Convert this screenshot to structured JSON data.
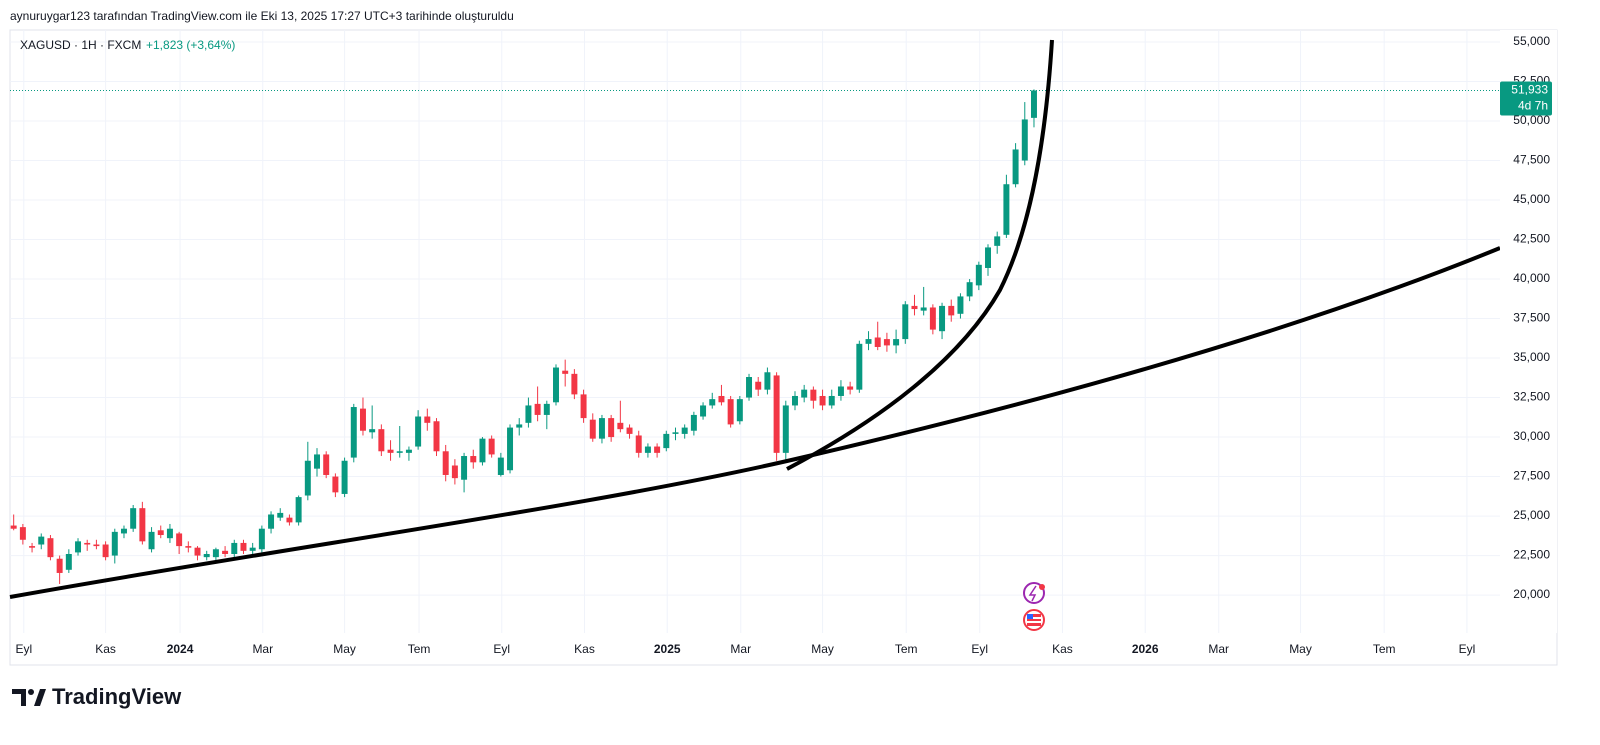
{
  "attribution": "aynuruygar123 tarafından TradingView.com ile Eki 13, 2025 17:27 UTC+3 tarihinde oluşturuldu",
  "brand": "TradingView",
  "chart_data": {
    "type": "candlestick",
    "title": "XAGUSD · 1H · FXCM",
    "change": "+1,823 (+3,64%)",
    "up_color": "#089981",
    "down_color": "#f23645",
    "open": [
      24.4,
      24.3,
      23.1,
      23.2,
      23.6,
      22.3,
      21.6,
      22.7,
      23.3,
      23.2,
      23.2,
      22.5,
      23.9,
      24.2,
      25.5,
      22.9,
      24.1,
      23.6,
      23.9,
      23.1,
      23.0,
      22.4,
      22.4,
      22.8,
      22.6,
      23.3,
      22.8,
      22.9,
      24.2,
      24.9,
      24.9,
      24.6,
      26.3,
      28.0,
      28.9,
      27.5,
      26.4,
      28.7,
      31.8,
      30.3,
      30.5,
      29.2,
      29.0,
      29.0,
      29.4,
      31.3,
      31.0,
      29.1,
      28.2,
      27.3,
      28.8,
      28.4,
      29.9,
      27.6,
      27.9,
      30.6,
      30.9,
      32.1,
      31.4,
      32.2,
      34.2,
      34.0,
      32.7,
      31.1,
      29.9,
      31.2,
      30.9,
      30.6,
      30.1,
      29.0,
      29.4,
      29.3,
      30.2,
      30.2,
      30.4,
      31.3,
      32.0,
      32.6,
      32.4,
      31.0,
      32.5,
      33.5,
      33.0,
      33.9,
      29.0,
      32.0,
      32.5,
      33.0,
      32.6,
      32.0,
      32.6,
      33.2,
      33.0,
      35.9,
      36.3,
      36.2,
      35.8,
      36.2,
      38.3,
      38.0,
      38.2,
      36.7,
      38.3,
      37.8,
      38.9,
      39.6,
      40.7,
      42.1,
      42.8,
      46.0,
      47.5,
      50.2
    ],
    "high": [
      25.1,
      24.5,
      23.3,
      23.9,
      23.8,
      22.5,
      22.9,
      23.6,
      23.5,
      23.5,
      23.4,
      24.2,
      24.4,
      25.7,
      25.9,
      24.3,
      24.4,
      24.5,
      24.0,
      23.4,
      23.1,
      22.8,
      23.0,
      23.1,
      23.5,
      23.5,
      23.3,
      24.4,
      25.3,
      25.5,
      25.1,
      26.3,
      29.7,
      29.3,
      29.1,
      27.7,
      28.7,
      32.1,
      32.5,
      32.0,
      30.8,
      29.8,
      30.7,
      29.4,
      31.7,
      31.8,
      31.2,
      29.5,
      28.6,
      29.0,
      29.2,
      30.0,
      30.1,
      29.0,
      30.8,
      31.2,
      32.5,
      33.2,
      32.3,
      34.6,
      34.9,
      34.3,
      33.0,
      31.5,
      31.4,
      31.4,
      32.3,
      30.8,
      30.4,
      29.6,
      29.6,
      30.4,
      30.6,
      30.8,
      31.6,
      32.2,
      32.8,
      33.3,
      32.6,
      32.6,
      34.0,
      33.8,
      34.4,
      34.1,
      32.3,
      32.9,
      33.3,
      33.2,
      33.0,
      33.0,
      33.6,
      33.5,
      36.1,
      36.7,
      37.3,
      36.6,
      36.8,
      38.6,
      39.0,
      39.5,
      38.4,
      38.5,
      38.7,
      39.1,
      40.0,
      41.1,
      42.2,
      43.0,
      46.6,
      48.6,
      51.2,
      52.0
    ],
    "low": [
      24.1,
      23.2,
      22.7,
      22.9,
      22.2,
      20.7,
      21.4,
      22.5,
      22.8,
      22.9,
      22.2,
      22.0,
      23.6,
      24.0,
      23.2,
      22.7,
      23.6,
      23.3,
      22.6,
      22.7,
      22.2,
      22.2,
      22.1,
      22.4,
      22.4,
      22.6,
      22.5,
      22.7,
      23.9,
      24.7,
      24.4,
      24.4,
      26.0,
      27.5,
      27.4,
      26.2,
      26.2,
      28.4,
      30.1,
      29.9,
      28.8,
      28.5,
      28.7,
      28.5,
      29.2,
      30.4,
      28.8,
      27.2,
      27.0,
      26.5,
      28.0,
      28.2,
      28.7,
      27.5,
      27.7,
      30.1,
      30.6,
      31.0,
      30.5,
      32.0,
      33.2,
      32.4,
      30.9,
      29.7,
      29.6,
      29.7,
      30.3,
      29.9,
      28.7,
      28.7,
      28.7,
      29.1,
      29.8,
      29.9,
      30.1,
      31.1,
      31.8,
      32.0,
      30.6,
      30.8,
      32.3,
      32.6,
      32.7,
      28.5,
      28.4,
      31.7,
      32.2,
      31.8,
      31.7,
      31.8,
      32.3,
      32.7,
      32.8,
      35.5,
      35.5,
      35.4,
      35.3,
      35.9,
      37.7,
      37.7,
      36.5,
      36.2,
      37.3,
      37.5,
      38.6,
      39.3,
      40.2,
      41.6,
      42.6,
      45.8,
      47.2,
      49.6
    ],
    "close": [
      24.2,
      23.5,
      23.0,
      23.7,
      22.4,
      21.4,
      22.6,
      23.4,
      23.2,
      23.1,
      22.4,
      24.0,
      24.2,
      25.5,
      23.4,
      24.0,
      23.8,
      24.2,
      23.1,
      23.0,
      22.5,
      22.6,
      22.9,
      22.6,
      23.3,
      22.8,
      23.0,
      24.2,
      25.1,
      25.2,
      24.6,
      26.2,
      28.5,
      28.9,
      27.6,
      26.5,
      28.5,
      31.9,
      30.4,
      30.5,
      29.1,
      29.0,
      29.1,
      29.2,
      31.3,
      30.9,
      29.1,
      27.6,
      27.4,
      28.8,
      28.4,
      29.9,
      28.9,
      28.7,
      30.6,
      30.8,
      32.0,
      31.4,
      32.1,
      34.4,
      34.0,
      32.7,
      31.2,
      29.9,
      31.2,
      30.0,
      30.5,
      30.2,
      29.0,
      29.4,
      29.0,
      30.2,
      30.3,
      30.6,
      31.4,
      32.0,
      32.4,
      32.2,
      30.8,
      32.4,
      33.8,
      33.0,
      34.1,
      29.0,
      32.0,
      32.6,
      33.0,
      32.3,
      32.0,
      32.6,
      33.2,
      33.0,
      35.9,
      36.2,
      35.7,
      35.8,
      36.2,
      38.4,
      38.1,
      38.2,
      36.8,
      38.3,
      37.7,
      38.9,
      39.8,
      40.9,
      42.0,
      42.7,
      46.0,
      48.2,
      50.1,
      51.933
    ],
    "last_price": {
      "value": 51.933,
      "label": "51,933"
    },
    "countdown": "4d 7h",
    "xlim": [
      -0.4,
      161.7
    ],
    "xticks": [
      {
        "value": 1.1,
        "label": "Eyl"
      },
      {
        "value": 10.0,
        "label": "Kas"
      },
      {
        "value": 18.1,
        "label": "2024"
      },
      {
        "value": 27.1,
        "label": "Mar"
      },
      {
        "value": 36.0,
        "label": "May"
      },
      {
        "value": 44.1,
        "label": "Tem"
      },
      {
        "value": 53.1,
        "label": "Eyl"
      },
      {
        "value": 62.1,
        "label": "Kas"
      },
      {
        "value": 71.1,
        "label": "2025"
      },
      {
        "value": 79.1,
        "label": "Mar"
      },
      {
        "value": 88.0,
        "label": "May"
      },
      {
        "value": 97.1,
        "label": "Tem"
      },
      {
        "value": 105.1,
        "label": "Eyl"
      },
      {
        "value": 114.1,
        "label": "Kas"
      },
      {
        "value": 123.1,
        "label": "2026"
      },
      {
        "value": 131.1,
        "label": "Mar"
      },
      {
        "value": 140.0,
        "label": "May"
      },
      {
        "value": 149.1,
        "label": "Tem"
      },
      {
        "value": 158.1,
        "label": "Eyl"
      }
    ],
    "ylim": [
      17.6,
      55.76
    ],
    "yticks": [
      {
        "value": 20,
        "label": "20,000"
      },
      {
        "value": 22.5,
        "label": "22,500"
      },
      {
        "value": 25,
        "label": "25,000"
      },
      {
        "value": 27.5,
        "label": "27,500"
      },
      {
        "value": 30,
        "label": "30,000"
      },
      {
        "value": 32.5,
        "label": "32,500"
      },
      {
        "value": 35,
        "label": "35,000"
      },
      {
        "value": 37.5,
        "label": "37,500"
      },
      {
        "value": 40,
        "label": "40,000"
      },
      {
        "value": 42.5,
        "label": "42,500"
      },
      {
        "value": 45,
        "label": "45,000"
      },
      {
        "value": 47.5,
        "label": "47,500"
      },
      {
        "value": 50,
        "label": "50,000"
      },
      {
        "value": 52.5,
        "label": "52,500"
      },
      {
        "value": 55,
        "label": "55,000"
      }
    ],
    "grid": true
  }
}
